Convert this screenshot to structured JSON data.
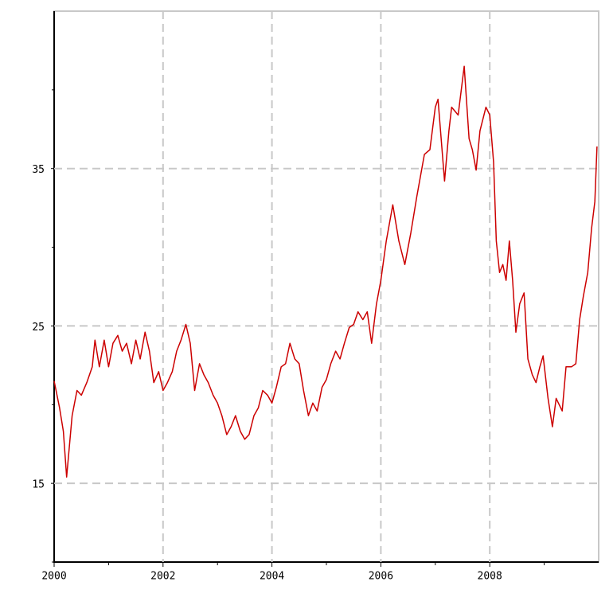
{
  "chart_data": {
    "type": "line",
    "x": [
      2000.0,
      2000.1,
      2000.17,
      2000.23,
      2000.33,
      2000.42,
      2000.5,
      2000.6,
      2000.7,
      2000.75,
      2000.83,
      2000.92,
      2001.0,
      2001.08,
      2001.17,
      2001.25,
      2001.33,
      2001.42,
      2001.5,
      2001.58,
      2001.67,
      2001.75,
      2001.83,
      2001.92,
      2002.0,
      2002.08,
      2002.17,
      2002.25,
      2002.33,
      2002.42,
      2002.5,
      2002.58,
      2002.67,
      2002.75,
      2002.83,
      2002.92,
      2003.0,
      2003.08,
      2003.17,
      2003.25,
      2003.33,
      2003.42,
      2003.5,
      2003.58,
      2003.67,
      2003.75,
      2003.83,
      2003.92,
      2004.0,
      2004.08,
      2004.17,
      2004.25,
      2004.33,
      2004.42,
      2004.5,
      2004.58,
      2004.67,
      2004.75,
      2004.83,
      2004.92,
      2005.0,
      2005.08,
      2005.17,
      2005.25,
      2005.33,
      2005.42,
      2005.5,
      2005.58,
      2005.67,
      2005.75,
      2005.83,
      2005.92,
      2006.0,
      2006.1,
      2006.22,
      2006.33,
      2006.44,
      2006.55,
      2006.66,
      2006.8,
      2006.9,
      2007.0,
      2007.05,
      2007.17,
      2007.25,
      2007.3,
      2007.42,
      2007.53,
      2007.62,
      2007.68,
      2007.75,
      2007.82,
      2007.93,
      2008.0,
      2008.07,
      2008.12,
      2008.18,
      2008.24,
      2008.3,
      2008.36,
      2008.42,
      2008.48,
      2008.55,
      2008.63,
      2008.7,
      2008.78,
      2008.85,
      2008.92,
      2008.98,
      2009.07,
      2009.15,
      2009.22,
      2009.33,
      2009.4,
      2009.5,
      2009.58,
      2009.65,
      2009.72,
      2009.8,
      2009.87,
      2009.93,
      2009.97
    ],
    "series": [
      {
        "color": "#cc0000",
        "values": [
          21.5,
          19.8,
          18.3,
          15.4,
          19.3,
          20.9,
          20.6,
          21.4,
          22.4,
          24.1,
          22.4,
          24.1,
          22.4,
          23.9,
          24.4,
          23.4,
          23.9,
          22.6,
          24.1,
          22.9,
          24.6,
          23.4,
          21.4,
          22.1,
          20.9,
          21.4,
          22.1,
          23.4,
          24.1,
          25.1,
          23.9,
          20.9,
          22.6,
          21.9,
          21.4,
          20.6,
          20.1,
          19.3,
          18.1,
          18.6,
          19.3,
          18.3,
          17.8,
          18.1,
          19.3,
          19.8,
          20.9,
          20.6,
          20.1,
          21.1,
          22.4,
          22.6,
          23.9,
          22.9,
          22.6,
          20.9,
          19.3,
          20.1,
          19.6,
          21.1,
          21.6,
          22.6,
          23.4,
          22.9,
          23.9,
          24.9,
          25.1,
          25.9,
          25.4,
          25.9,
          23.9,
          26.4,
          27.9,
          30.4,
          32.7,
          30.4,
          28.9,
          30.9,
          33.2,
          35.9,
          36.2,
          38.9,
          39.4,
          34.2,
          37.4,
          38.9,
          38.4,
          41.5,
          36.9,
          36.2,
          34.9,
          37.4,
          38.9,
          38.4,
          35.4,
          30.4,
          28.4,
          28.9,
          27.9,
          30.4,
          27.9,
          24.6,
          26.4,
          27.1,
          22.9,
          21.9,
          21.4,
          22.4,
          23.1,
          20.4,
          18.6,
          20.4,
          19.6,
          22.4,
          22.4,
          22.6,
          25.4,
          26.9,
          28.4,
          31.2,
          32.9,
          36.4
        ]
      }
    ],
    "xlim": [
      2000,
      2010
    ],
    "xticks": [
      2000,
      2002,
      2004,
      2006,
      2008
    ],
    "xminorticks": [
      2001,
      2003,
      2005,
      2007,
      2009
    ],
    "ylim": [
      10,
      45
    ],
    "yticks": [
      15,
      25,
      35
    ],
    "yminorticks": [
      10,
      20,
      30,
      40
    ],
    "grid": true
  }
}
